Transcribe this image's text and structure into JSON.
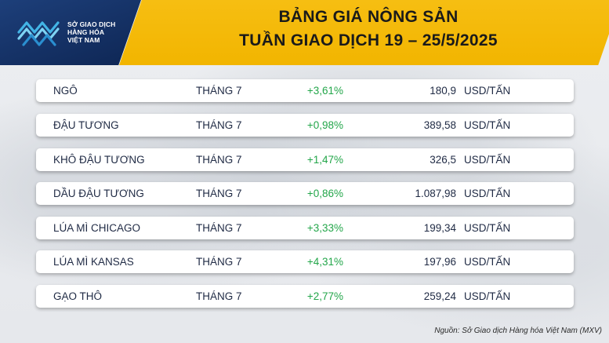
{
  "colors": {
    "header_yellow": "#f4ba08",
    "logo_navy": "#173466",
    "positive_green": "#23a64a",
    "row_background": "#ffffff"
  },
  "logo": {
    "line1": "SỞ GIAO DỊCH",
    "line2": "HÀNG HÓA",
    "line3": "VIỆT NAM"
  },
  "header": {
    "title_line1": "BẢNG GIÁ NÔNG SẢN",
    "title_line2": "TUẦN GIAO DỊCH 19 – 25/5/2025"
  },
  "rows": [
    {
      "name": "NGÔ",
      "month": "THÁNG 7",
      "change": "+3,61%",
      "price": "180,9",
      "unit": "USD/TẤN"
    },
    {
      "name": "ĐẬU TƯƠNG",
      "month": "THÁNG 7",
      "change": "+0,98%",
      "price": "389,58",
      "unit": "USD/TẤN"
    },
    {
      "name": "KHÔ ĐẬU TƯƠNG",
      "month": "THÁNG 7",
      "change": "+1,47%",
      "price": "326,5",
      "unit": "USD/TẤN"
    },
    {
      "name": "DẦU ĐẬU TƯƠNG",
      "month": "THÁNG 7",
      "change": "+0,86%",
      "price": "1.087,98",
      "unit": "USD/TẤN"
    },
    {
      "name": "LÚA MÌ CHICAGO",
      "month": "THÁNG 7",
      "change": "+3,33%",
      "price": "199,34",
      "unit": "USD/TẤN"
    },
    {
      "name": "LÚA MÌ KANSAS",
      "month": "THÁNG 7",
      "change": "+4,31%",
      "price": "197,96",
      "unit": "USD/TẤN"
    },
    {
      "name": "GẠO THÔ",
      "month": "THÁNG 7",
      "change": "+2,77%",
      "price": "259,24",
      "unit": "USD/TẤN"
    }
  ],
  "footer": {
    "source": "Nguồn: Sở Giao dịch Hàng hóa Việt Nam (MXV)"
  }
}
